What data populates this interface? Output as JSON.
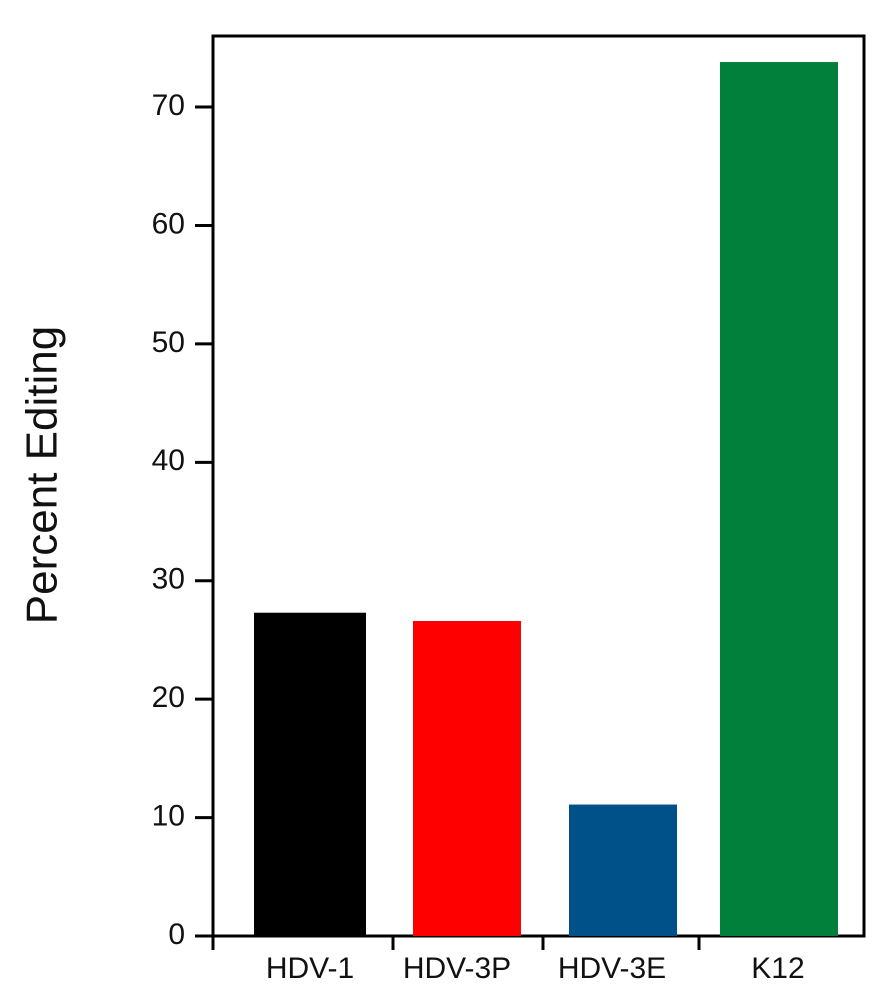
{
  "chart_data": {
    "type": "bar",
    "y_label": "Percent Editing",
    "categories": [
      "HDV-1",
      "HDV-3P",
      "HDV-3E",
      "K12"
    ],
    "values": [
      27.3,
      26.6,
      11.1,
      73.8
    ],
    "colors": [
      "#000000",
      "#ff0000",
      "#00508a",
      "#00803a"
    ],
    "ylim": [
      0,
      76
    ],
    "yticks": [
      0,
      10,
      20,
      30,
      40,
      50,
      60,
      70
    ]
  }
}
